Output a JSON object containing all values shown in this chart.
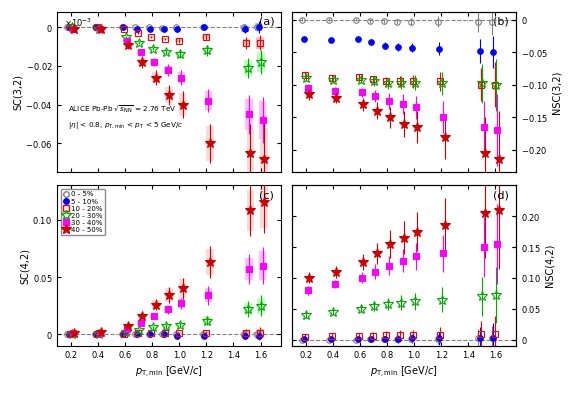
{
  "x_values": [
    0.2,
    0.4,
    0.6,
    0.7,
    0.8,
    0.9,
    1.0,
    1.2,
    1.5,
    1.6
  ],
  "x_ticks": [
    0.2,
    0.4,
    0.6,
    0.8,
    1.0,
    1.2,
    1.4,
    1.6
  ],
  "sc32": {
    "c0_5": [
      0.0,
      0.0,
      0.0,
      0.0,
      0.0,
      -0.0005,
      0.0,
      0.0,
      0.0,
      0.0
    ],
    "c5_10": [
      0.0,
      0.0,
      0.0,
      -0.001,
      -0.001,
      -0.001,
      -0.001,
      0.0,
      -0.001,
      0.0
    ],
    "c10_20": [
      0.0,
      0.0,
      -0.001,
      -0.003,
      -0.005,
      -0.006,
      -0.007,
      -0.005,
      -0.008,
      -0.008
    ],
    "c20_30": [
      0.0,
      -0.001,
      -0.005,
      -0.008,
      -0.011,
      -0.013,
      -0.014,
      -0.012,
      -0.021,
      -0.018
    ],
    "c30_40": [
      -0.001,
      -0.001,
      -0.007,
      -0.013,
      -0.018,
      -0.022,
      -0.026,
      -0.038,
      -0.045,
      -0.048
    ],
    "c40_50": [
      -0.001,
      -0.001,
      -0.009,
      -0.018,
      -0.026,
      -0.035,
      -0.04,
      -0.06,
      -0.065,
      -0.068
    ]
  },
  "sc32_err": {
    "c0_5": [
      0.0002,
      0.0002,
      0.0002,
      0.0003,
      0.0003,
      0.0004,
      0.0005,
      0.0008,
      0.0015,
      0.002
    ],
    "c5_10": [
      0.0002,
      0.0002,
      0.0003,
      0.0004,
      0.0004,
      0.0005,
      0.0006,
      0.001,
      0.002,
      0.003
    ],
    "c10_20": [
      0.0002,
      0.0003,
      0.0004,
      0.0005,
      0.0006,
      0.0007,
      0.001,
      0.0015,
      0.003,
      0.004
    ],
    "c20_30": [
      0.0003,
      0.0004,
      0.0005,
      0.0007,
      0.001,
      0.001,
      0.002,
      0.003,
      0.005,
      0.006
    ],
    "c30_40": [
      0.0003,
      0.0005,
      0.001,
      0.001,
      0.002,
      0.003,
      0.004,
      0.006,
      0.01,
      0.012
    ],
    "c40_50": [
      0.0005,
      0.001,
      0.002,
      0.003,
      0.004,
      0.005,
      0.007,
      0.01,
      0.015,
      0.02
    ]
  },
  "sc32_syst": {
    "c0_5": [
      0.0001,
      0.0001,
      0.0001,
      0.0002,
      0.0002,
      0.0003,
      0.0003,
      0.0005,
      0.001,
      0.001
    ],
    "c5_10": [
      0.0001,
      0.0001,
      0.0002,
      0.0003,
      0.0003,
      0.0004,
      0.0005,
      0.0008,
      0.0015,
      0.002
    ],
    "c10_20": [
      0.0001,
      0.0002,
      0.0003,
      0.0004,
      0.0005,
      0.0006,
      0.0008,
      0.001,
      0.002,
      0.003
    ],
    "c20_30": [
      0.0002,
      0.0003,
      0.0004,
      0.0006,
      0.0008,
      0.001,
      0.0015,
      0.002,
      0.004,
      0.005
    ],
    "c30_40": [
      0.0002,
      0.0004,
      0.0008,
      0.001,
      0.0015,
      0.002,
      0.003,
      0.005,
      0.008,
      0.01
    ],
    "c40_50": [
      0.0003,
      0.0008,
      0.0015,
      0.002,
      0.003,
      0.004,
      0.006,
      0.009,
      0.012,
      0.016
    ]
  },
  "sc42": {
    "c0_5": [
      0.0,
      0.0,
      0.0,
      0.0,
      0.0,
      0.0,
      0.0,
      0.0,
      0.0,
      0.0
    ],
    "c5_10": [
      0.0,
      0.0,
      0.0,
      0.0,
      0.0,
      0.0,
      -0.001,
      -0.001,
      -0.001,
      -0.001
    ],
    "c10_20": [
      0.0,
      0.0,
      0.0,
      0.001,
      0.001,
      0.001,
      0.001,
      0.001,
      0.001,
      0.001
    ],
    "c20_30": [
      0.0,
      0.0,
      0.002,
      0.004,
      0.006,
      0.007,
      0.008,
      0.012,
      0.022,
      0.025
    ],
    "c30_40": [
      0.001,
      0.001,
      0.005,
      0.01,
      0.016,
      0.022,
      0.027,
      0.034,
      0.057,
      0.06
    ],
    "c40_50": [
      0.001,
      0.002,
      0.007,
      0.016,
      0.026,
      0.034,
      0.04,
      0.063,
      0.108,
      0.115
    ]
  },
  "sc42_err": {
    "c0_5": [
      0.0002,
      0.0002,
      0.0003,
      0.0004,
      0.0004,
      0.0005,
      0.0006,
      0.001,
      0.002,
      0.003
    ],
    "c5_10": [
      0.0002,
      0.0003,
      0.0004,
      0.0005,
      0.0006,
      0.0007,
      0.001,
      0.0015,
      0.003,
      0.004
    ],
    "c10_20": [
      0.0002,
      0.0003,
      0.0004,
      0.0006,
      0.0007,
      0.001,
      0.001,
      0.002,
      0.004,
      0.005
    ],
    "c20_30": [
      0.0003,
      0.0004,
      0.0006,
      0.001,
      0.001,
      0.002,
      0.002,
      0.004,
      0.007,
      0.009
    ],
    "c30_40": [
      0.0004,
      0.0006,
      0.001,
      0.002,
      0.003,
      0.004,
      0.005,
      0.008,
      0.013,
      0.016
    ],
    "c40_50": [
      0.0006,
      0.001,
      0.002,
      0.003,
      0.005,
      0.007,
      0.009,
      0.014,
      0.022,
      0.027
    ]
  },
  "sc42_syst": {
    "c0_5": [
      0.0001,
      0.0001,
      0.0002,
      0.0003,
      0.0003,
      0.0004,
      0.0005,
      0.0008,
      0.0015,
      0.002
    ],
    "c5_10": [
      0.0001,
      0.0002,
      0.0003,
      0.0004,
      0.0005,
      0.0006,
      0.0008,
      0.001,
      0.002,
      0.003
    ],
    "c10_20": [
      0.0001,
      0.0002,
      0.0003,
      0.0005,
      0.0006,
      0.0008,
      0.001,
      0.0015,
      0.003,
      0.004
    ],
    "c20_30": [
      0.0002,
      0.0003,
      0.0005,
      0.0008,
      0.001,
      0.0015,
      0.002,
      0.003,
      0.005,
      0.007
    ],
    "c30_40": [
      0.0003,
      0.0005,
      0.0008,
      0.0015,
      0.002,
      0.003,
      0.004,
      0.006,
      0.01,
      0.013
    ],
    "c40_50": [
      0.0004,
      0.0008,
      0.0015,
      0.002,
      0.004,
      0.006,
      0.008,
      0.011,
      0.018,
      0.022
    ]
  },
  "nsc32": {
    "c0_5": [
      0.0,
      0.0,
      0.0,
      -0.002,
      -0.002,
      -0.003,
      -0.003,
      -0.003,
      -0.004,
      -0.004
    ],
    "c5_10": [
      -0.03,
      -0.032,
      -0.03,
      -0.035,
      -0.04,
      -0.042,
      -0.043,
      -0.045,
      -0.048,
      -0.05
    ],
    "c10_20": [
      -0.085,
      -0.09,
      -0.088,
      -0.092,
      -0.095,
      -0.095,
      -0.095,
      -0.095,
      -0.1,
      -0.1
    ],
    "c20_30": [
      -0.09,
      -0.093,
      -0.093,
      -0.095,
      -0.098,
      -0.097,
      -0.097,
      -0.098,
      -0.098,
      -0.1
    ],
    "c30_40": [
      -0.105,
      -0.11,
      -0.112,
      -0.118,
      -0.125,
      -0.13,
      -0.135,
      -0.15,
      -0.165,
      -0.17
    ],
    "c40_50": [
      -0.115,
      -0.12,
      -0.13,
      -0.14,
      -0.15,
      -0.16,
      -0.165,
      -0.18,
      -0.205,
      -0.215
    ]
  },
  "nsc32_err": {
    "c0_5": [
      0.002,
      0.002,
      0.002,
      0.003,
      0.003,
      0.004,
      0.005,
      0.008,
      0.015,
      0.02
    ],
    "c5_10": [
      0.003,
      0.003,
      0.003,
      0.004,
      0.005,
      0.006,
      0.007,
      0.01,
      0.018,
      0.025
    ],
    "c10_20": [
      0.005,
      0.005,
      0.005,
      0.006,
      0.007,
      0.008,
      0.01,
      0.015,
      0.025,
      0.035
    ],
    "c20_30": [
      0.005,
      0.005,
      0.005,
      0.007,
      0.008,
      0.01,
      0.012,
      0.018,
      0.03,
      0.04
    ],
    "c30_40": [
      0.006,
      0.006,
      0.007,
      0.009,
      0.012,
      0.015,
      0.018,
      0.025,
      0.04,
      0.055
    ],
    "c40_50": [
      0.008,
      0.008,
      0.01,
      0.013,
      0.016,
      0.02,
      0.025,
      0.035,
      0.055,
      0.075
    ]
  },
  "nsc42": {
    "c0_5": [
      0.0,
      0.0,
      0.0,
      0.001,
      0.001,
      0.001,
      0.001,
      0.001,
      0.002,
      0.002
    ],
    "c5_10": [
      0.001,
      0.001,
      0.001,
      0.001,
      0.001,
      0.001,
      0.002,
      0.002,
      0.002,
      0.002
    ],
    "c10_20": [
      0.005,
      0.006,
      0.006,
      0.006,
      0.007,
      0.007,
      0.007,
      0.008,
      0.009,
      0.009
    ],
    "c20_30": [
      0.04,
      0.045,
      0.05,
      0.055,
      0.058,
      0.06,
      0.062,
      0.065,
      0.07,
      0.072
    ],
    "c30_40": [
      0.08,
      0.09,
      0.1,
      0.11,
      0.12,
      0.128,
      0.135,
      0.14,
      0.15,
      0.155
    ],
    "c40_50": [
      0.1,
      0.11,
      0.125,
      0.14,
      0.155,
      0.165,
      0.175,
      0.185,
      0.205,
      0.21
    ]
  },
  "nsc42_err": {
    "c0_5": [
      0.002,
      0.002,
      0.002,
      0.003,
      0.003,
      0.004,
      0.005,
      0.008,
      0.015,
      0.02
    ],
    "c5_10": [
      0.003,
      0.003,
      0.003,
      0.004,
      0.005,
      0.006,
      0.007,
      0.01,
      0.018,
      0.025
    ],
    "c10_20": [
      0.004,
      0.004,
      0.005,
      0.006,
      0.007,
      0.008,
      0.009,
      0.013,
      0.022,
      0.03
    ],
    "c20_30": [
      0.005,
      0.005,
      0.006,
      0.008,
      0.01,
      0.012,
      0.014,
      0.02,
      0.032,
      0.045
    ],
    "c30_40": [
      0.007,
      0.007,
      0.009,
      0.012,
      0.015,
      0.018,
      0.022,
      0.03,
      0.048,
      0.065
    ],
    "c40_50": [
      0.009,
      0.01,
      0.013,
      0.017,
      0.022,
      0.027,
      0.032,
      0.045,
      0.072,
      0.095
    ]
  },
  "colors": {
    "c0_5": "#808080",
    "c5_10": "#0000FF",
    "c10_20": "#FF0000",
    "c20_30": "#00AA00",
    "c30_40": "#FF00FF",
    "c40_50": "#CC0000"
  },
  "syst_colors": {
    "c0_5": "#C0C0C0",
    "c5_10": "#AAAAFF",
    "c10_20": "#FFAAAA",
    "c20_30": "#AAFFAA",
    "c30_40": "#FFAAFF",
    "c40_50": "#FFCCCC"
  },
  "legend_labels": [
    "0 - 5%",
    "5 - 10%",
    "10 - 20%",
    "20 - 30%",
    "30 - 40%",
    "40 - 50%"
  ],
  "centrality_keys": [
    "c0_5",
    "c5_10",
    "c10_20",
    "c20_30",
    "c30_40",
    "c40_50"
  ],
  "xlabel": "$p_{\\mathrm{T,min}}$ [GeV/$c$]",
  "text_line1": "ALICE Pb-Pb $\\sqrt{s_{\\mathrm{NN}}}$ = 2.76 TeV",
  "text_line2": "$|\\eta|$ < 0.8, $p_{\\mathrm{T,min}}$ < $p_{\\mathrm{T}}$ < 5 GeV/$c$",
  "xlim": [
    0.1,
    1.75
  ]
}
